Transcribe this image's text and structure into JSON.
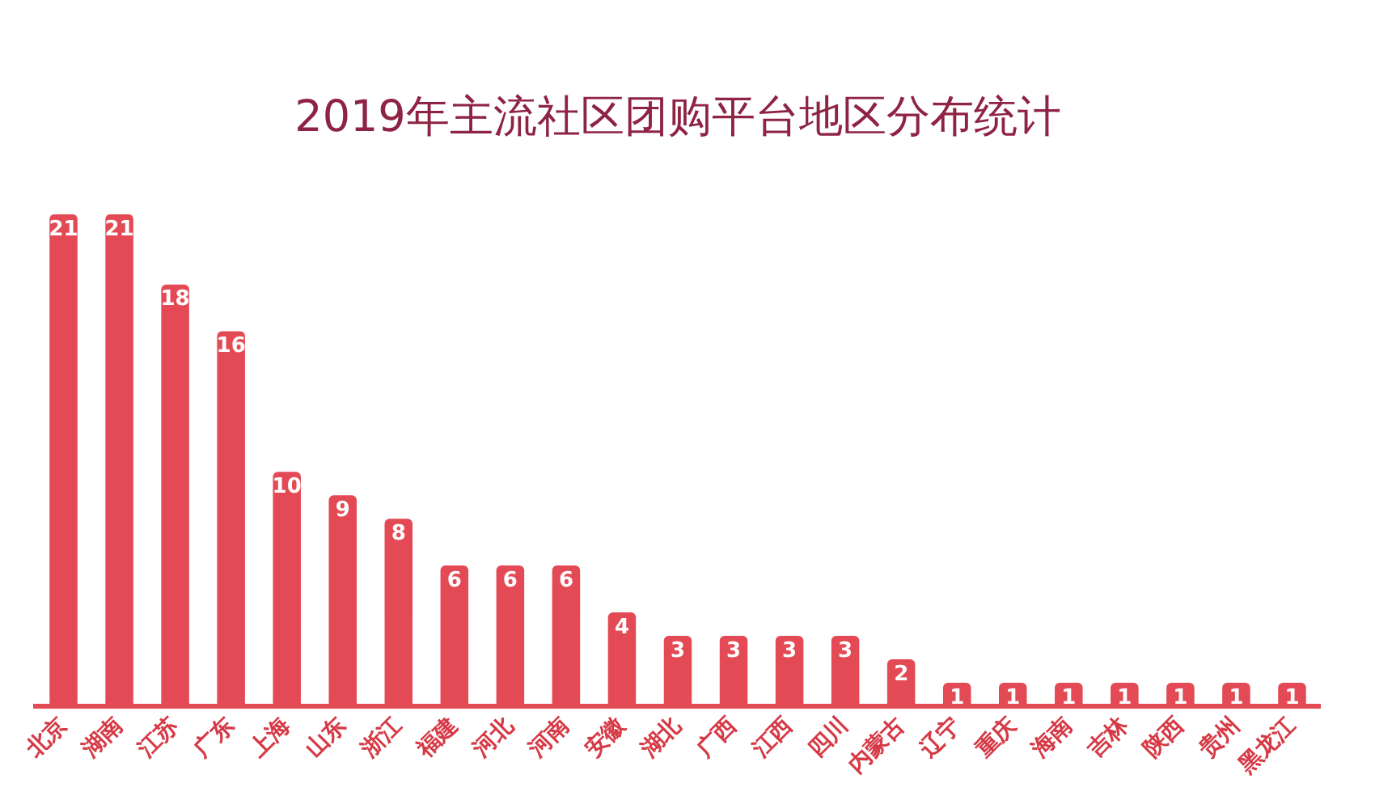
{
  "chart_data": {
    "type": "bar",
    "title": "2019年主流社区团购平台地区分布统计",
    "categories": [
      "北京",
      "湖南",
      "江苏",
      "广东",
      "上海",
      "山东",
      "浙江",
      "福建",
      "河北",
      "河南",
      "安徽",
      "湖北",
      "广西",
      "江西",
      "四川",
      "内蒙古",
      "辽宁",
      "重庆",
      "海南",
      "吉林",
      "陕西",
      "贵州",
      "黑龙江"
    ],
    "values": [
      21,
      21,
      18,
      16,
      10,
      9,
      8,
      6,
      6,
      6,
      4,
      3,
      3,
      3,
      3,
      2,
      1,
      1,
      1,
      1,
      1,
      1,
      1
    ],
    "color": "#e34a55",
    "data_labels": true,
    "tick_labels": "x"
  }
}
